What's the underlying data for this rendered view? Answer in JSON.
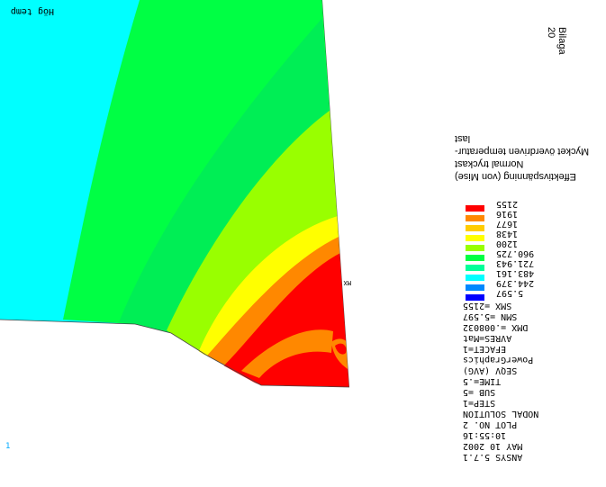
{
  "plot": {
    "region_label": "Hög temp",
    "triad_label": "1",
    "mx_label": "MX"
  },
  "titles": {
    "line1": "Effektivspänning (von Mise)",
    "line2": "Normal tryckast",
    "line3": "Mycket överdriven temperatur-",
    "line4": "last"
  },
  "page_tag": "Bilaga 20",
  "legend": [
    {
      "value": "2155",
      "color": "#ff0000"
    },
    {
      "value": "1916",
      "color": "#ff8800"
    },
    {
      "value": "1677",
      "color": "#ffcc00"
    },
    {
      "value": "1438",
      "color": "#ffff00"
    },
    {
      "value": "1200",
      "color": "#99ff00"
    },
    {
      "value": "960.725",
      "color": "#00ff44"
    },
    {
      "value": "721.943",
      "color": "#00ff99"
    },
    {
      "value": "483.161",
      "color": "#00ffff"
    },
    {
      "value": "244.379",
      "color": "#0088ff"
    },
    {
      "value": "5.597",
      "color": "#0000ff"
    }
  ],
  "info": {
    "smx": "SMX =2155",
    "smn": "SMN =5.597",
    "dmx": "DMX =.008032",
    "avres": "AVRES=Mat",
    "efacet": "EFACET=1",
    "graphics": "PowerGraphics",
    "seqv": "SEQV     (AVG)",
    "time": "TIME=.5",
    "sub": "SUB =5",
    "step": "STEP=1",
    "solution": "NODAL SOLUTION",
    "plot_no": "PLOT NO.   2",
    "clock": "10:55:16",
    "date": "MAY 10 2002",
    "ansys": "ANSYS 5.7.1"
  }
}
